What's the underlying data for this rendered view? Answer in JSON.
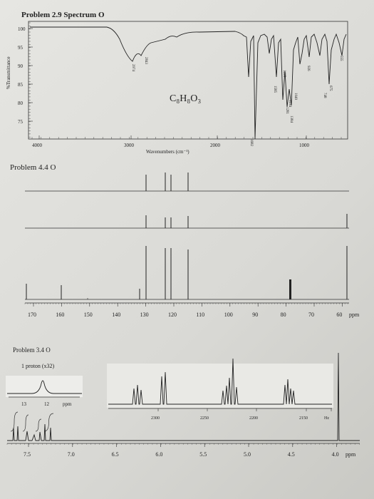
{
  "ir": {
    "title": "Problem 2.9 Spectrum O",
    "ylabel": "%Transmittance",
    "yticks": [
      "100",
      "95",
      "90",
      "85",
      "80",
      "75"
    ],
    "xticks": [
      "4000",
      "3000",
      "2000",
      "1000"
    ],
    "xlabel": "Wavenumbers (cm⁻¹)",
    "formula": "C₈H₈O₃",
    "peaks": [
      "2974",
      "2843",
      "1682",
      "1585",
      "1415",
      "1384",
      "1281",
      "1234",
      "1049",
      "926",
      "748",
      "675",
      "555"
    ]
  },
  "c13": {
    "title": "Problem 4.4 O",
    "xticks": [
      "170",
      "160",
      "150",
      "140",
      "130",
      "120",
      "110",
      "100",
      "90",
      "80",
      "70",
      "60"
    ],
    "unit": "ppm"
  },
  "h1": {
    "title": "Problem 3.4 O",
    "inset_label": "1 proton (x32)",
    "inset_ticks": [
      "13",
      "12",
      "ppm"
    ],
    "expansion_ticks": [
      "2300",
      "2250",
      "2200",
      "2150",
      "Hz"
    ],
    "xticks": [
      "7.5",
      "7.0",
      "6.5",
      "6.0",
      "5.5",
      "5.0",
      "4.5",
      "4.0"
    ],
    "unit": "ppm"
  }
}
